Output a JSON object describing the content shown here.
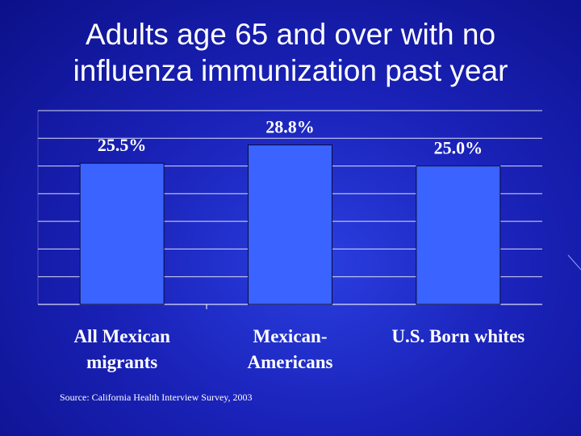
{
  "slide": {
    "title_line1": "Adults age 65 and over with no",
    "title_line2": "influenza immunization past year",
    "source": "Source: California Health Interview Survey, 2003"
  },
  "colors": {
    "bar_fill": "#3a63ff",
    "bar_stroke": "#0a0a3a",
    "gridline": "#ffffff",
    "text": "#ffffff",
    "background": "#1a22b8"
  },
  "chart_data": {
    "type": "bar",
    "categories": [
      "All Mexican migrants",
      "Mexican-Americans",
      "U.S. Born whites"
    ],
    "category_lines": [
      [
        "All Mexican",
        "migrants"
      ],
      [
        "Mexican-",
        "Americans"
      ],
      [
        "U.S. Born whites"
      ]
    ],
    "values": [
      25.5,
      28.8,
      25.0
    ],
    "data_labels": [
      "25.5%",
      "28.8%",
      "25.0%"
    ],
    "ylim": [
      0,
      35
    ],
    "grid": true,
    "title": "",
    "xlabel": "",
    "ylabel": ""
  }
}
